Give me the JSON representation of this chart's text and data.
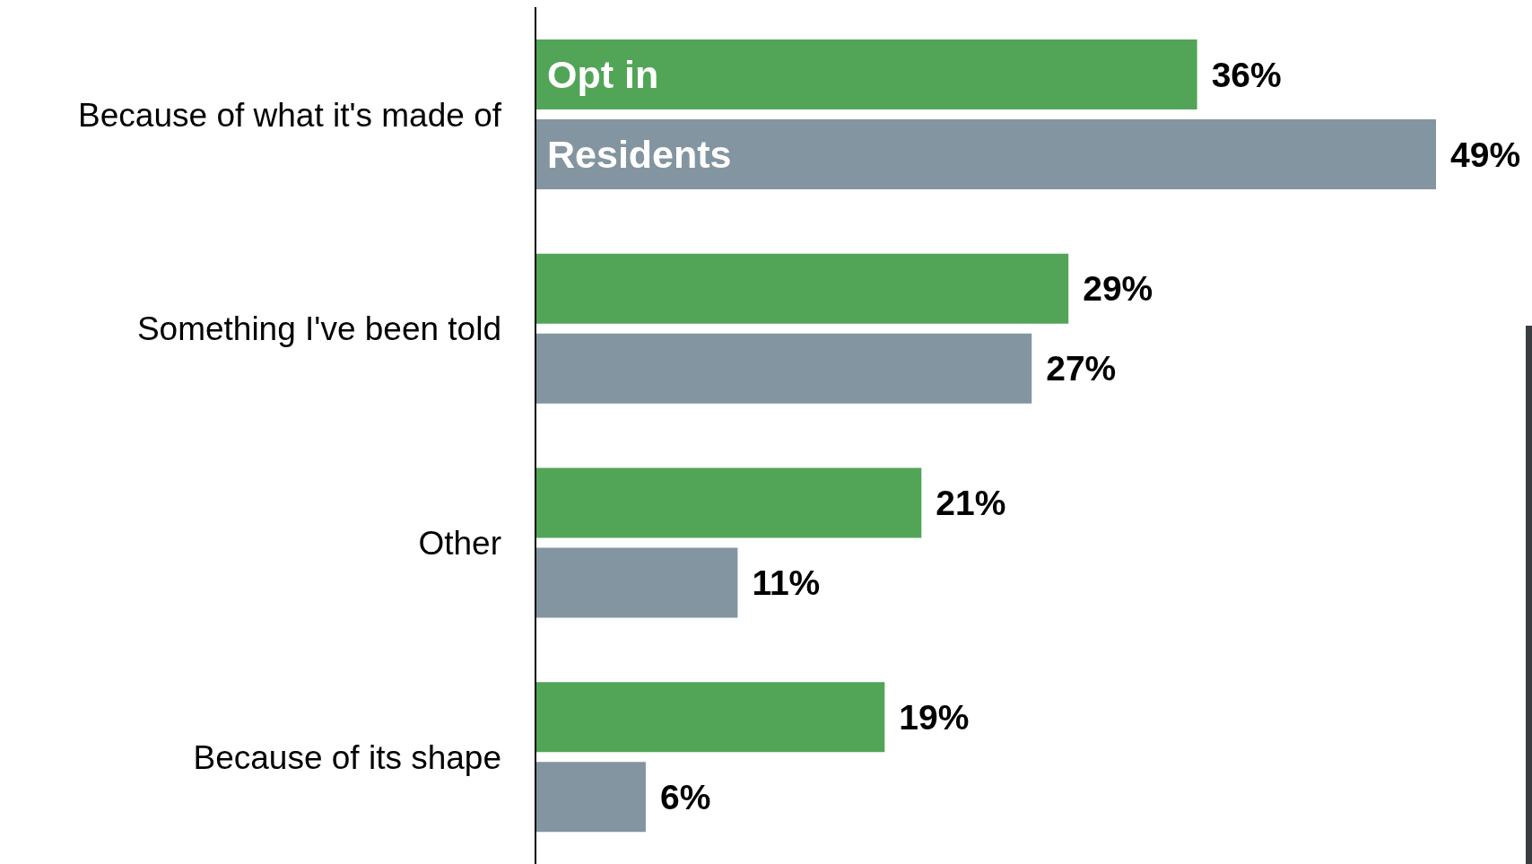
{
  "chart_data": {
    "type": "bar",
    "orientation": "horizontal",
    "categories": [
      "Because of what it's made of",
      "Something I've been told",
      "Other",
      "Because of its shape"
    ],
    "series": [
      {
        "name": "Opt in",
        "color": "#52a557",
        "values": [
          36,
          29,
          21,
          19
        ],
        "value_labels": [
          "36%",
          "29%",
          "21%",
          "19%"
        ]
      },
      {
        "name": "Residents",
        "color": "#8395a0",
        "values": [
          49,
          27,
          11,
          6
        ],
        "value_labels": [
          "49%",
          "27%",
          "11%",
          "6%"
        ]
      }
    ],
    "legend": false,
    "grid": false
  }
}
